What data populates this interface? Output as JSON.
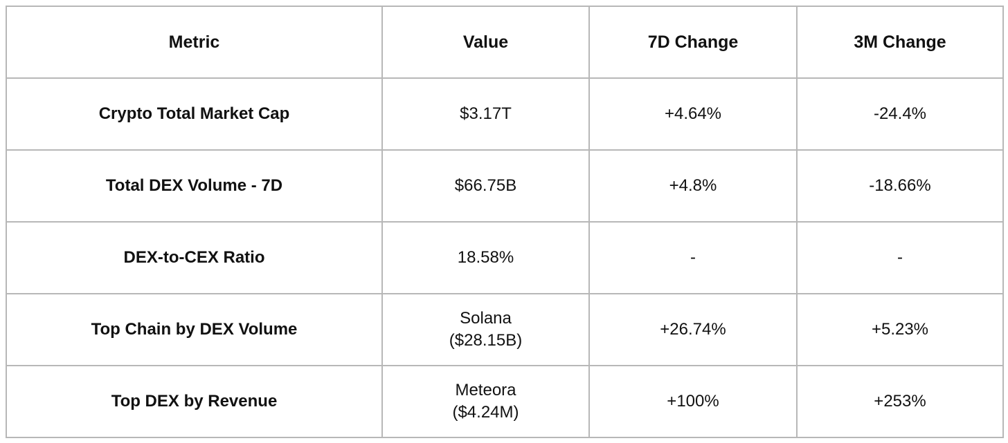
{
  "chart_data": {
    "type": "table",
    "title": "",
    "columns": {
      "metric": "Metric",
      "value": "Value",
      "change_7d": "7D Change",
      "change_3m": "3M Change"
    },
    "rows": [
      {
        "metric": "Crypto Total Market Cap",
        "value": "$3.17T",
        "change_7d": "+4.64%",
        "change_3m": "-24.4%"
      },
      {
        "metric": "Total DEX Volume - 7D",
        "value": "$66.75B",
        "change_7d": "+4.8%",
        "change_3m": "-18.66%"
      },
      {
        "metric": "DEX-to-CEX Ratio",
        "value": "18.58%",
        "change_7d": "-",
        "change_3m": "-"
      },
      {
        "metric": "Top Chain by DEX Volume",
        "value": "Solana\n($28.15B)",
        "change_7d": "+26.74%",
        "change_3m": "+5.23%"
      },
      {
        "metric": "Top DEX by Revenue",
        "value": "Meteora\n($4.24M)",
        "change_7d": "+100%",
        "change_3m": "+253%"
      }
    ],
    "colors": {
      "border": "#b7b7b7",
      "text": "#111111",
      "background": "#ffffff"
    }
  }
}
